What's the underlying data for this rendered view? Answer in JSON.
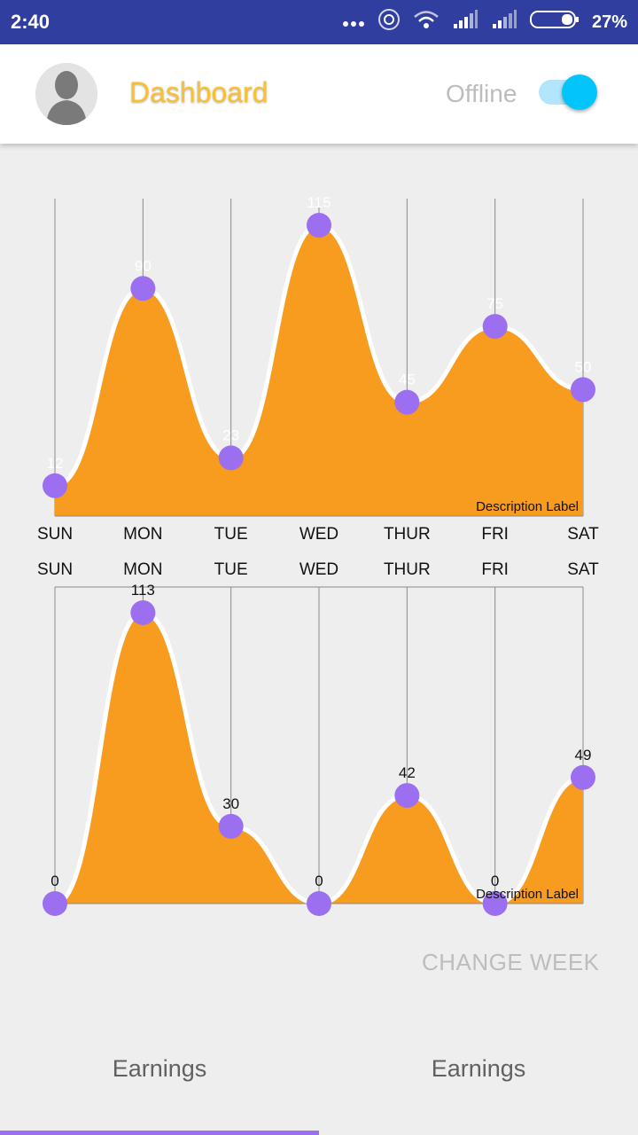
{
  "status_bar": {
    "time": "2:40",
    "battery": "27%",
    "icons": [
      "more-dots-icon",
      "hotspot-icon",
      "wifi-icon",
      "signal-icon",
      "signal-icon",
      "battery-icon"
    ]
  },
  "app_bar": {
    "title": "Dashboard",
    "status_label": "Offline",
    "toggle_on": true,
    "avatar_icon": "user-avatar-icon",
    "colors": {
      "title": "#fbc02d",
      "toggle": "#03c5fb",
      "status_bar": "#303f9f"
    }
  },
  "chart_data": [
    {
      "type": "area",
      "categories": [
        "SUN",
        "MON",
        "TUE",
        "WED",
        "THUR",
        "FRI",
        "SAT"
      ],
      "series": [
        {
          "values": [
            12,
            90,
            23,
            115,
            45,
            75,
            50
          ]
        }
      ],
      "value_labels": [
        "12",
        "90",
        "23",
        "115",
        "45",
        "75",
        "50"
      ],
      "description": "Description Label",
      "ylim": [
        0,
        115
      ],
      "colors": {
        "fill": "#f79c1e",
        "point": "#9c6ff0",
        "line": "#ffffff"
      }
    },
    {
      "type": "area",
      "categories": [
        "SUN",
        "MON",
        "TUE",
        "WED",
        "THUR",
        "FRI",
        "SAT"
      ],
      "series": [
        {
          "values": [
            0,
            113,
            30,
            0,
            42,
            0,
            49
          ]
        }
      ],
      "value_labels": [
        "0",
        "113",
        "30",
        "0",
        "42",
        "0",
        "49"
      ],
      "description": "Description Label",
      "ylim": [
        0,
        113
      ],
      "colors": {
        "fill": "#f79c1e",
        "point": "#9c6ff0",
        "line": "#ffffff"
      }
    }
  ],
  "actions": {
    "change_week": "CHANGE WEEK"
  },
  "tabs": [
    {
      "label": "Earnings",
      "active": true
    },
    {
      "label": "Earnings",
      "active": false
    }
  ]
}
